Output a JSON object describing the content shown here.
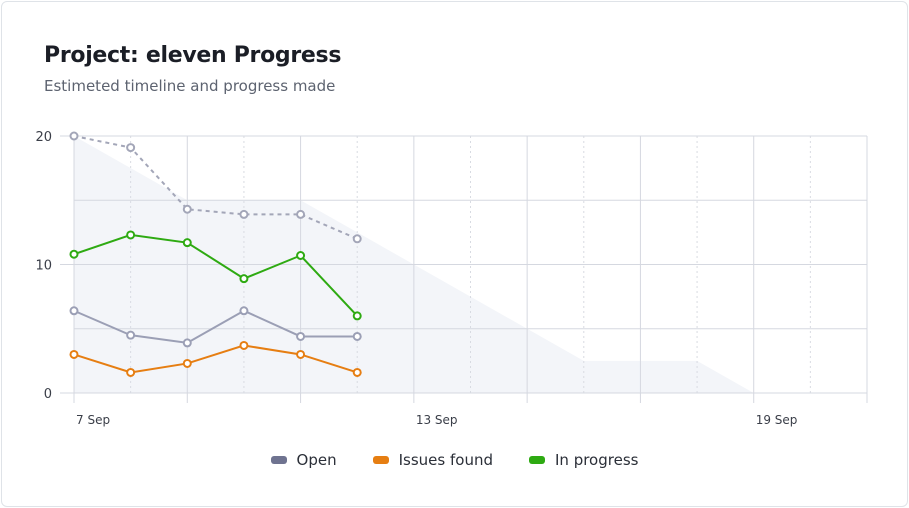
{
  "header": {
    "title": "Project: eleven Progress",
    "subtitle": "Estimeted timeline and progress made"
  },
  "chart_data": {
    "type": "line",
    "title": "Project: eleven Progress",
    "subtitle": "Estimeted timeline and progress made",
    "x_unit": "day of September",
    "xlim": [
      7,
      21
    ],
    "ylim": [
      0,
      20
    ],
    "x_ticks": [
      {
        "value": 7,
        "label": "7 Sep"
      },
      {
        "value": 13,
        "label": "13 Sep"
      },
      {
        "value": 19,
        "label": "19 Sep"
      }
    ],
    "y_ticks": [
      {
        "value": 0,
        "label": "0"
      },
      {
        "value": 10,
        "label": "10"
      },
      {
        "value": 20,
        "label": "20"
      }
    ],
    "grid": true,
    "legend_position": "bottom",
    "area": {
      "color": "#f3f5f9",
      "x": [
        7,
        9,
        11,
        16,
        18,
        19
      ],
      "y": [
        20,
        15,
        15,
        2.5,
        2.5,
        0
      ]
    },
    "dotted_series": {
      "color": "#a3a6b8",
      "x": [
        7,
        8,
        9,
        10,
        11,
        12
      ],
      "y": [
        20,
        19.1,
        14.3,
        13.9,
        13.9,
        12.0
      ]
    },
    "series": [
      {
        "name": "Open",
        "color": "#9b9fb5",
        "legend_color": "#6f7390",
        "x": [
          7,
          8,
          9,
          10,
          11,
          12
        ],
        "y": [
          6.4,
          4.5,
          3.9,
          6.4,
          4.4,
          4.4
        ]
      },
      {
        "name": "Issues found",
        "color": "#e67e12",
        "legend_color": "#e67e12",
        "x": [
          7,
          8,
          9,
          10,
          11,
          12
        ],
        "y": [
          3.0,
          1.6,
          2.3,
          3.7,
          3.0,
          1.6
        ]
      },
      {
        "name": "In progress",
        "color": "#2eaa12",
        "legend_color": "#2eaa12",
        "x": [
          7,
          8,
          9,
          10,
          11,
          12
        ],
        "y": [
          10.8,
          12.3,
          11.7,
          8.9,
          10.7,
          6.0
        ]
      }
    ]
  }
}
